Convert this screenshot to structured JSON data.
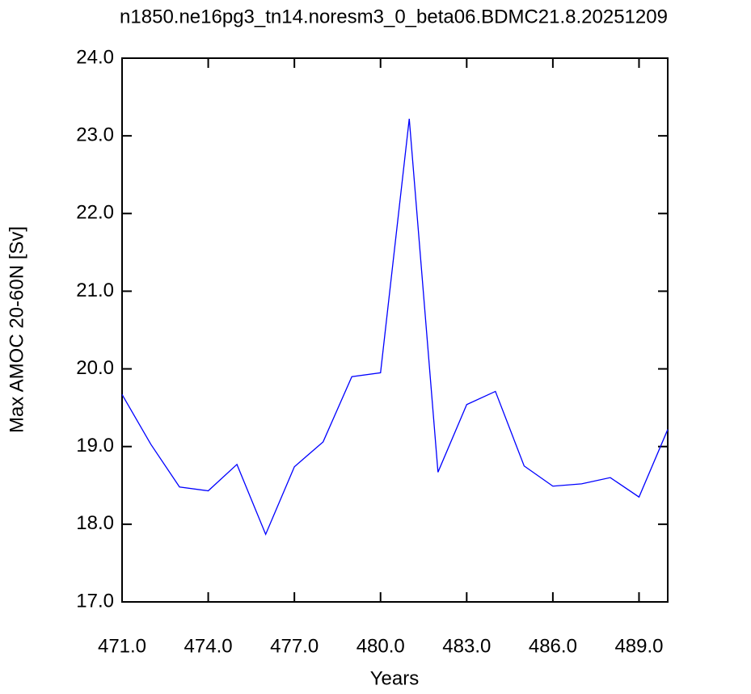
{
  "chart_data": {
    "type": "line",
    "title": "n1850.ne16pg3_tn14.noresm3_0_beta06.BDMC21.8.20251209",
    "x_label": "Years",
    "y_label": "Max AMOC 20-60N [Sv]",
    "x": [
      471,
      472,
      473,
      474,
      475,
      476,
      477,
      478,
      479,
      480,
      481,
      482,
      483,
      484,
      485,
      486,
      487,
      488,
      489,
      490
    ],
    "series": [
      {
        "color": "#0000ff",
        "values": [
          19.67,
          19.03,
          18.48,
          18.43,
          18.77,
          17.87,
          18.74,
          19.06,
          19.9,
          19.95,
          23.22,
          18.67,
          19.54,
          19.71,
          18.75,
          18.49,
          18.52,
          18.6,
          18.35,
          19.22
        ]
      }
    ],
    "xlim": [
      471,
      490
    ],
    "ylim": [
      17,
      24
    ],
    "xticks": [
      {
        "value": 471,
        "label": "471.0"
      },
      {
        "value": 474,
        "label": "474.0"
      },
      {
        "value": 477,
        "label": "477.0"
      },
      {
        "value": 480,
        "label": "480.0"
      },
      {
        "value": 483,
        "label": "483.0"
      },
      {
        "value": 486,
        "label": "486.0"
      },
      {
        "value": 489,
        "label": "489.0"
      }
    ],
    "yticks": [
      {
        "value": 17,
        "label": "17.0"
      },
      {
        "value": 18,
        "label": "18.0"
      },
      {
        "value": 19,
        "label": "19.0"
      },
      {
        "value": 20,
        "label": "20.0"
      },
      {
        "value": 21,
        "label": "21.0"
      },
      {
        "value": 22,
        "label": "22.0"
      },
      {
        "value": 23,
        "label": "23.0"
      },
      {
        "value": 24,
        "label": "24.0"
      }
    ]
  }
}
